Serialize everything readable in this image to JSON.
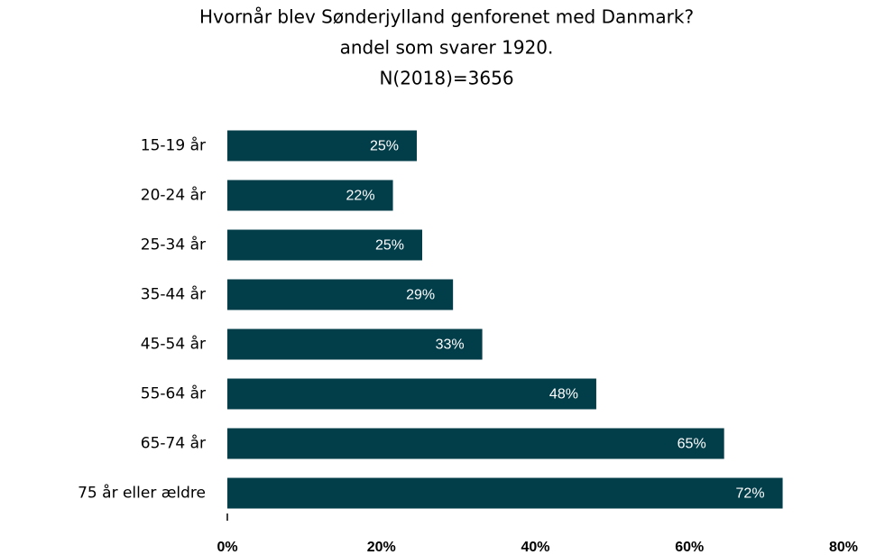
{
  "chart_data": {
    "type": "barh",
    "title": [
      "Hvornår blev Sønderjylland genforenet med Danmark?",
      "andel som svarer 1920.",
      "N(2018)=3656"
    ],
    "categories": [
      "15-19 år",
      "20-24 år",
      "25-34 år",
      "35-44 år",
      "45-54 år",
      "55-64 år",
      "65-74 år",
      "75 år eller ældre"
    ],
    "values": [
      24.6,
      21.5,
      25.3,
      29.3,
      33.1,
      47.9,
      64.5,
      72.1
    ],
    "value_labels": [
      "25%",
      "22%",
      "25%",
      "29%",
      "33%",
      "48%",
      "65%",
      "72%"
    ],
    "color": "#023e4a",
    "xlim": [
      0,
      80
    ],
    "xticks": [
      {
        "value": 0,
        "label": "0%"
      },
      {
        "value": 20,
        "label": "20%"
      },
      {
        "value": 40,
        "label": "40%"
      },
      {
        "value": 60,
        "label": "60%"
      },
      {
        "value": 80,
        "label": "80%"
      }
    ],
    "grid": false
  }
}
